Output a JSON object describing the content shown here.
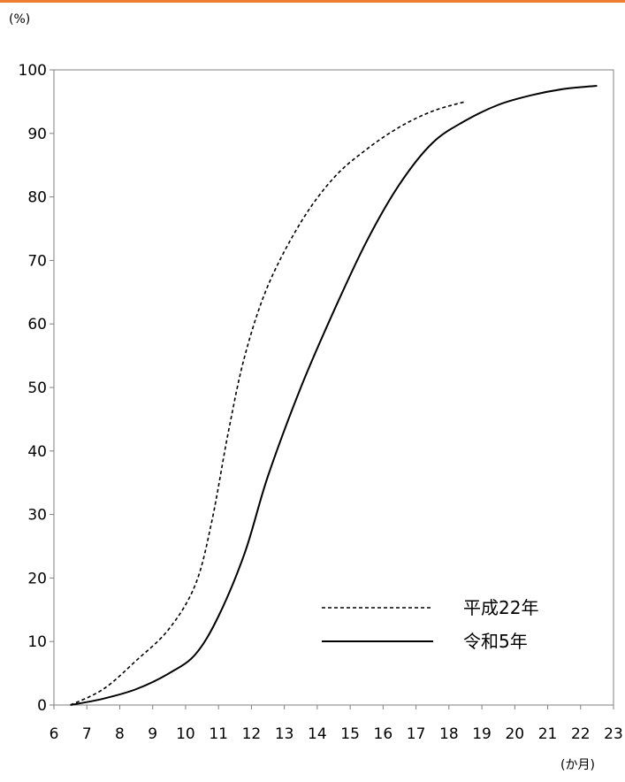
{
  "accent_color": "#ED7D31",
  "chart_data": {
    "type": "line",
    "ylabel": "(%)",
    "xlabel": "(か月)",
    "xlim": [
      6,
      23
    ],
    "ylim": [
      0,
      100
    ],
    "x_ticks": [
      6,
      7,
      8,
      9,
      10,
      11,
      12,
      13,
      14,
      15,
      16,
      17,
      18,
      19,
      20,
      21,
      22,
      23
    ],
    "y_ticks": [
      0,
      10,
      20,
      30,
      40,
      50,
      60,
      70,
      80,
      90,
      100
    ],
    "grid": false,
    "legend_position": "bottom-right",
    "series": [
      {
        "name": "平成22年",
        "line_style": "dashed",
        "points": [
          [
            6.5,
            0
          ],
          [
            7.5,
            2.5
          ],
          [
            8.5,
            7
          ],
          [
            9.5,
            12
          ],
          [
            10.3,
            19
          ],
          [
            10.8,
            29
          ],
          [
            11.3,
            43
          ],
          [
            11.8,
            55
          ],
          [
            12.5,
            66
          ],
          [
            13.5,
            76
          ],
          [
            14.5,
            83
          ],
          [
            15.5,
            87.5
          ],
          [
            16.5,
            91
          ],
          [
            17.5,
            93.5
          ],
          [
            18.5,
            95
          ]
        ]
      },
      {
        "name": "令和5年",
        "line_style": "solid",
        "points": [
          [
            6.5,
            0
          ],
          [
            7.5,
            1
          ],
          [
            8.5,
            2.5
          ],
          [
            9.5,
            5
          ],
          [
            10.3,
            8
          ],
          [
            11,
            14
          ],
          [
            11.8,
            24
          ],
          [
            12.5,
            36
          ],
          [
            13.5,
            50
          ],
          [
            14.5,
            62
          ],
          [
            15.5,
            73
          ],
          [
            16.5,
            82
          ],
          [
            17.5,
            88.5
          ],
          [
            18.5,
            92
          ],
          [
            19.5,
            94.5
          ],
          [
            20.5,
            96
          ],
          [
            21.5,
            97
          ],
          [
            22.5,
            97.5
          ]
        ]
      }
    ]
  }
}
